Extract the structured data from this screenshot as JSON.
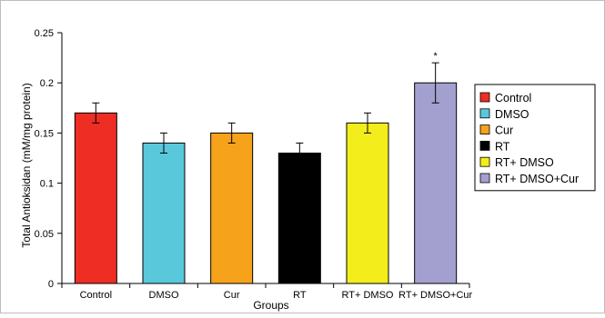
{
  "chart_data": {
    "type": "bar",
    "title": "",
    "xlabel": "Groups",
    "ylabel": "Total Antioksidan (mM/mg protein)",
    "categories": [
      "Control",
      "DMSO",
      "Cur",
      "RT",
      "RT+ DMSO",
      "RT+ DMSO+Cur"
    ],
    "values": [
      0.17,
      0.14,
      0.15,
      0.13,
      0.16,
      0.2
    ],
    "errors": [
      0.01,
      0.01,
      0.01,
      0.01,
      0.01,
      0.02
    ],
    "colors": [
      "#ee2d24",
      "#5ac8db",
      "#f7a21b",
      "#000000",
      "#f3ee1b",
      "#a3a0d0"
    ],
    "ylim": [
      0,
      0.25
    ],
    "yticks": [
      "0",
      "0.05",
      "0.1",
      "0.15",
      "0.2",
      "0.25"
    ],
    "yticks_values": [
      0,
      0.05,
      0.1,
      0.15,
      0.2,
      0.25
    ],
    "annotations": [
      {
        "category": "RT+ DMSO+Cur",
        "text": "*"
      }
    ],
    "legend": {
      "position": "right",
      "entries": [
        "Control",
        "DMSO",
        "Cur",
        "RT",
        "RT+ DMSO",
        "RT+ DMSO+Cur"
      ]
    },
    "grid": false
  }
}
